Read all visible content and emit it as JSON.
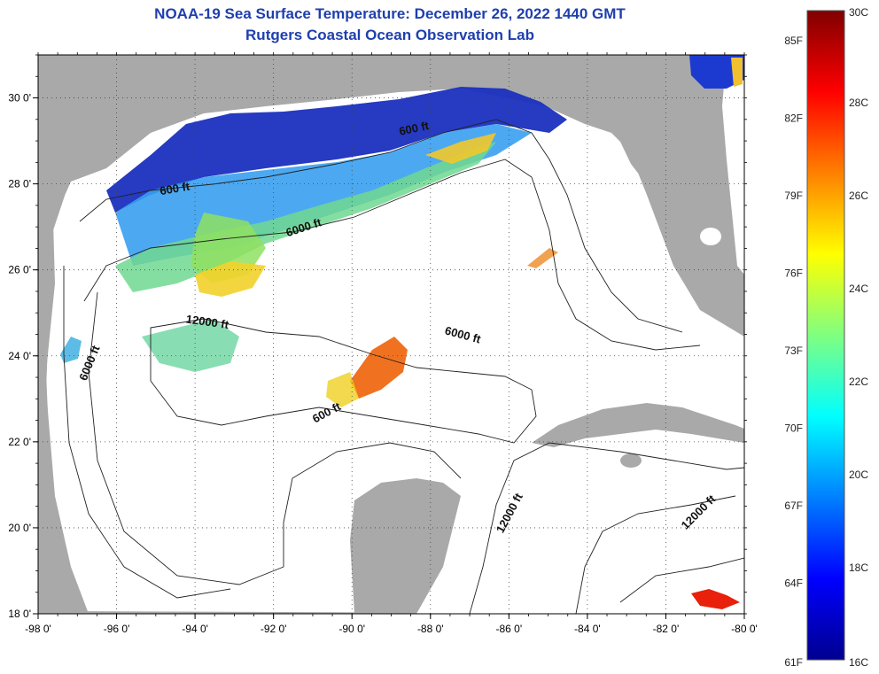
{
  "header": {
    "title": "NOAA-19 Sea Surface Temperature:  December 26, 2022 1440 GMT",
    "subtitle": "Rutgers Coastal Ocean Observation Lab"
  },
  "map": {
    "lon_range": [
      -98,
      -80
    ],
    "lat_range": [
      18,
      31
    ],
    "lon_ticks": [
      {
        "value": -98,
        "label": "-98 0'"
      },
      {
        "value": -96,
        "label": "-96 0'"
      },
      {
        "value": -94,
        "label": "-94 0'"
      },
      {
        "value": -92,
        "label": "-92 0'"
      },
      {
        "value": -90,
        "label": "-90 0'"
      },
      {
        "value": -88,
        "label": "-88 0'"
      },
      {
        "value": -86,
        "label": "-86 0'"
      },
      {
        "value": -84,
        "label": "-84 0'"
      },
      {
        "value": -82,
        "label": "-82 0'"
      },
      {
        "value": -80,
        "label": "-80 0'"
      }
    ],
    "lat_ticks": [
      {
        "value": 30,
        "label": "30 0'"
      },
      {
        "value": 28,
        "label": "28 0'"
      },
      {
        "value": 26,
        "label": "26 0'"
      },
      {
        "value": 24,
        "label": "24 0'"
      },
      {
        "value": 22,
        "label": "22 0'"
      },
      {
        "value": 20,
        "label": "20 0'"
      },
      {
        "value": 18,
        "label": "18 0'"
      }
    ],
    "grid": "dotted",
    "land_color": "#a9a9a9",
    "ocean_color": "#ffffff",
    "contour_labels": [
      {
        "text": "600 ft",
        "lon": -94.5,
        "lat": 27.8,
        "angle": -10
      },
      {
        "text": "600 ft",
        "lon": -88.4,
        "lat": 29.2,
        "angle": -12
      },
      {
        "text": "6000 ft",
        "lon": -91.2,
        "lat": 26.9,
        "angle": -18
      },
      {
        "text": "12000 ft",
        "lon": -93.7,
        "lat": 24.7,
        "angle": 8
      },
      {
        "text": "6000 ft",
        "lon": -96.6,
        "lat": 23.8,
        "angle": -68
      },
      {
        "text": "6000 ft",
        "lon": -87.2,
        "lat": 24.4,
        "angle": 15
      },
      {
        "text": "600 ft",
        "lon": -90.6,
        "lat": 22.6,
        "angle": -28
      },
      {
        "text": "12000 ft",
        "lon": -85.9,
        "lat": 20.3,
        "angle": -62
      },
      {
        "text": "12000 ft",
        "lon": -81.1,
        "lat": 20.3,
        "angle": -45
      }
    ]
  },
  "colorbar": {
    "fahrenheit_labels": [
      "85F",
      "82F",
      "79F",
      "76F",
      "73F",
      "70F",
      "67F",
      "64F",
      "61F"
    ],
    "celsius_labels": [
      "30C",
      "28C",
      "26C",
      "24C",
      "22C",
      "20C",
      "18C",
      "16C"
    ],
    "stops": [
      "#00008f",
      "#0000ff",
      "#0080ff",
      "#00ffff",
      "#80ff80",
      "#ffff00",
      "#ff8000",
      "#ff0000",
      "#800000"
    ]
  },
  "colors": {
    "title": "#1f3fae",
    "cold": "#1530c0",
    "cool": "#3fb0ff",
    "mid": "#7fe07f",
    "warm": "#f0d020",
    "hot": "#f07010"
  }
}
